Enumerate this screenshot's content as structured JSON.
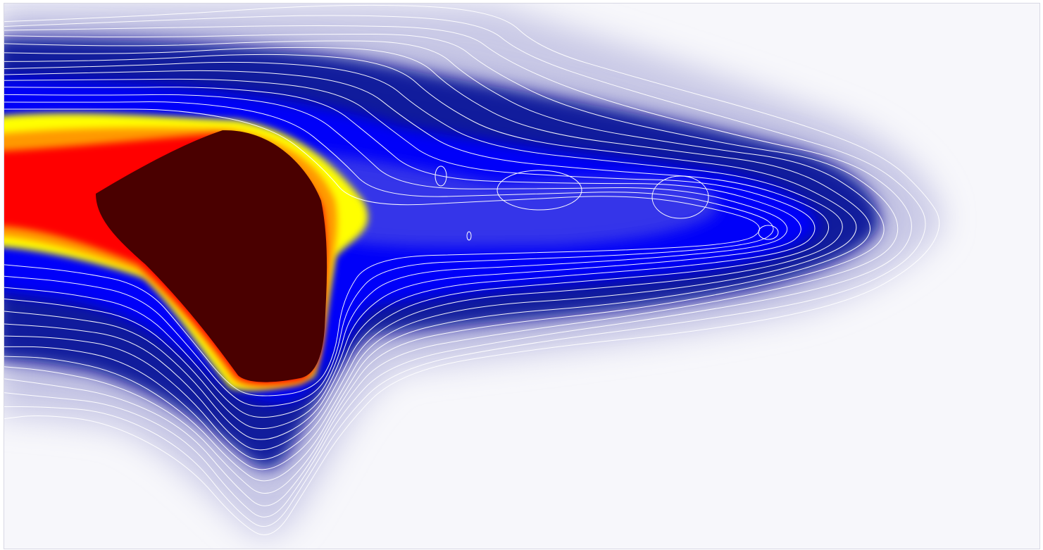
{
  "chart_data": {
    "type": "heatmap",
    "title": "",
    "xlabel": "",
    "ylabel": "",
    "grid": false,
    "legend": "none",
    "colormap": {
      "name": "blue-red-yellow",
      "stops": [
        "#f4f4fa",
        "#c9c9e6",
        "#6f6fc0",
        "#000f96",
        "#0000ff",
        "#3b3be8",
        "#ffff00",
        "#ff9900",
        "#ff0000",
        "#4a0000"
      ]
    },
    "contour_color": "#ffffff",
    "contour_count": 14,
    "features": [
      {
        "name": "core",
        "peak": "saturated",
        "color": "#4a0000"
      },
      {
        "name": "tail",
        "direction": "right",
        "color": "#0000ff"
      },
      {
        "name": "lower-lobe",
        "direction": "down",
        "color": "#6f6fc0"
      }
    ]
  }
}
